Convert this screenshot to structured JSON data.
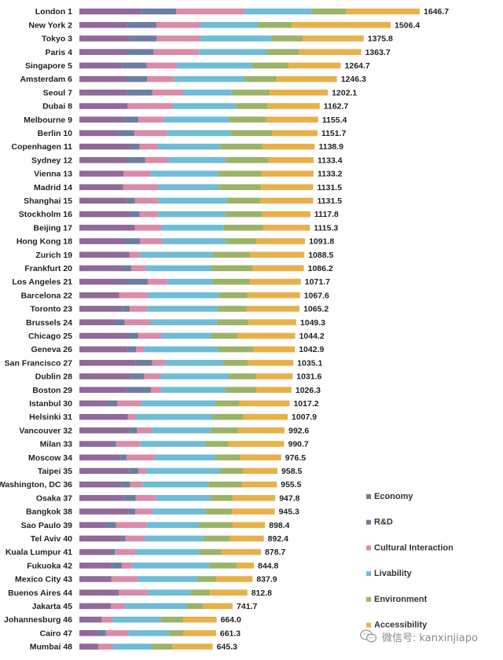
{
  "chart_data": {
    "type": "bar",
    "orientation": "horizontal",
    "stacked": true,
    "title": "",
    "xlabel": "",
    "ylabel": "",
    "categories": [
      "London 1",
      "New York 2",
      "Tokyo 3",
      "Paris 4",
      "Singapore 5",
      "Amsterdam 6",
      "Seoul 7",
      "Dubai 8",
      "Melbourne 9",
      "Berlin 10",
      "Copenhagen 11",
      "Sydney 12",
      "Vienna 13",
      "Madrid 14",
      "Shanghai 15",
      "Stockholm 16",
      "Beijing 17",
      "Hong Kong 18",
      "Zurich 19",
      "Frankfurt 20",
      "Los Angeles 21",
      "Barcelona 22",
      "Toronto 23",
      "Brussels 24",
      "Chicago 25",
      "Geneva 26",
      "San Francisco 27",
      "Dublin 28",
      "Boston 29",
      "Istanbul 30",
      "Helsinki 31",
      "Vancouver 32",
      "Milan 33",
      "Moscow 34",
      "Taipei 35",
      "Washington, DC 36",
      "Osaka 37",
      "Bangkok 38",
      "Sao Paulo 39",
      "Tel Aviv 40",
      "Kuala Lumpur 41",
      "Fukuoka 42",
      "Mexico City 43",
      "Buenos Aires 44",
      "Jakarta 45",
      "Johannesburg 46",
      "Cairo 47",
      "Mumbai 48"
    ],
    "totals": [
      1646.7,
      1506.4,
      1375.8,
      1363.7,
      1264.7,
      1246.3,
      1202.1,
      1162.7,
      1155.4,
      1151.7,
      1138.9,
      1133.4,
      1133.2,
      1131.5,
      1131.5,
      1117.8,
      1115.3,
      1091.8,
      1088.5,
      1086.2,
      1071.7,
      1067.6,
      1065.2,
      1049.3,
      1044.2,
      1042.9,
      1035.1,
      1031.6,
      1026.3,
      1017.2,
      1007.9,
      992.6,
      990.7,
      976.5,
      958.5,
      955.5,
      947.8,
      945.3,
      898.4,
      892.4,
      878.7,
      844.8,
      837.9,
      812.8,
      741.7,
      664.0,
      661.3,
      645.3
    ],
    "total_labels": [
      "1646.7",
      "1506.4",
      "1375.8",
      "1363.7",
      "1264.7",
      "1246.3",
      "1202.1",
      "1162.7",
      "1155.4",
      "1151.7",
      "1138.9",
      "1133.4",
      "1133.2",
      "1131.5",
      "1131.5",
      "1117.8",
      "1115.3",
      "1091.8",
      "1088.5",
      "1086.2",
      "1071.7",
      "1067.6",
      "1065.2",
      "1049.3",
      "1044.2",
      "1042.9",
      "1035.1",
      "1031.6",
      "1026.3",
      "1017.2",
      "1007.9",
      "992.6",
      "990.7",
      "976.5",
      "958.5",
      "955.5",
      "947.8",
      "945.3",
      "898.4",
      "892.4",
      "878.7",
      "844.8",
      "837.9",
      "812.8",
      "741.7",
      "664.0",
      "661.3",
      "645.3"
    ],
    "series": [
      {
        "name": "Economy",
        "color": "#8e6b98",
        "values": [
          300,
          233,
          243,
          230,
          208,
          230,
          231,
          232,
          220,
          189,
          253,
          232,
          213,
          211,
          231,
          247,
          269,
          213,
          243,
          209,
          228,
          193,
          208,
          179,
          234,
          235,
          271,
          248,
          227,
          137,
          234,
          244,
          152,
          200,
          239,
          204,
          214,
          237,
          129,
          204,
          154,
          159,
          154,
          190,
          152,
          108,
          89,
          92
        ]
      },
      {
        "name": "R&D",
        "color": "#6b7ea0",
        "values": [
          168,
          140,
          131,
          130,
          118,
          97,
          122,
          0,
          66,
          78,
          38,
          87,
          0,
          0,
          38,
          45,
          0,
          81,
          0,
          43,
          103,
          0,
          36,
          40,
          52,
          39,
          81,
          66,
          119,
          46,
          0,
          36,
          25,
          28,
          46,
          42,
          58,
          34,
          48,
          19,
          18,
          46,
          0,
          0,
          0,
          0,
          39,
          0
        ]
      },
      {
        "name": "Cultural Interaction",
        "color": "#d98ba8",
        "values": [
          331,
          216,
          212,
          219,
          147,
          132,
          149,
          219,
          122,
          158,
          89,
          112,
          132,
          169,
          114,
          89,
          129,
          109,
          52,
          70,
          92,
          140,
          86,
          125,
          113,
          41,
          64,
          80,
          50,
          118,
          38,
          70,
          117,
          137,
          38,
          61,
          98,
          83,
          147,
          94,
          101,
          51,
          130,
          143,
          67,
          52,
          109,
          70
        ]
      },
      {
        "name": "Livability",
        "color": "#6fbcd6",
        "values": [
          324,
          276,
          343,
          330,
          363,
          340,
          235,
          308,
          316,
          306,
          302,
          277,
          325,
          298,
          333,
          327,
          299,
          306,
          350,
          317,
          221,
          341,
          343,
          321,
          238,
          357,
          280,
          330,
          310,
          357,
          371,
          288,
          315,
          291,
          358,
          318,
          263,
          255,
          254,
          283,
          306,
          374,
          288,
          205,
          300,
          236,
          200,
          190
        ]
      },
      {
        "name": "Environment",
        "color": "#9bb368",
        "values": [
          169,
          163,
          151,
          153,
          177,
          156,
          184,
          153,
          179,
          202,
          204,
          208,
          211,
          201,
          161,
          175,
          191,
          147,
          180,
          200,
          182,
          138,
          137,
          153,
          128,
          171,
          121,
          132,
          152,
          117,
          151,
          130,
          113,
          124,
          110,
          163,
          109,
          129,
          164,
          128,
          108,
          133,
          90,
          94,
          81,
          106,
          68,
          98
        ]
      },
      {
        "name": "Accessibility",
        "color": "#e8b04a",
        "values": [
          354.7,
          478.4,
          295.8,
          301.7,
          251.7,
          291.3,
          281.1,
          250.7,
          252.4,
          218.7,
          252.9,
          217.4,
          252.2,
          252.5,
          254.5,
          234.8,
          227.3,
          235.8,
          263.5,
          247.2,
          245.7,
          255.6,
          255.2,
          231.3,
          279.2,
          199.9,
          218.1,
          175.6,
          168.3,
          242.2,
          213.9,
          224.6,
          268.7,
          196.5,
          167.5,
          167.5,
          205.8,
          207.3,
          156.4,
          164.4,
          191.7,
          81.8,
          175.9,
          180.8,
          141.7,
          162.0,
          156.3,
          195.3
        ]
      }
    ],
    "xlim": [
      0,
      1700
    ],
    "grid": false,
    "legend_position": "bottom-right"
  },
  "watermark": {
    "text": "微信号: kanxinjiapo",
    "icon": "wechat-icon"
  }
}
